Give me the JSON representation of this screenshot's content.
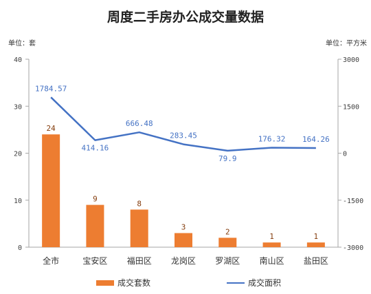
{
  "colors": {
    "bar": "#ED7D31",
    "line": "#4472C4",
    "bar_label": "#843C0C",
    "line_label": "#4472C4",
    "axis_line": "#A6A6A6"
  },
  "chart_data": {
    "type": "bar",
    "title": "周度二手房办公成交量数据",
    "ylabel": "单位：套",
    "y2label": "单位：平方米",
    "categories": [
      "全市",
      "宝安区",
      "福田区",
      "龙岗区",
      "罗湖区",
      "南山区",
      "盐田区"
    ],
    "series": [
      {
        "name": "成交套数",
        "type": "bar",
        "axis": "left",
        "values": [
          24,
          9,
          8,
          3,
          2,
          1,
          1
        ]
      },
      {
        "name": "成交面积",
        "type": "line",
        "axis": "right",
        "values": [
          1784.57,
          414.16,
          666.48,
          283.45,
          79.9,
          176.32,
          164.26
        ]
      }
    ],
    "ylim": [
      0,
      40
    ],
    "yticks": [
      0,
      10,
      20,
      30,
      40
    ],
    "y2lim": [
      -3000,
      3000
    ],
    "y2ticks": [
      -3000,
      -1500,
      0,
      1500,
      3000
    ],
    "grid": false,
    "legend": "bottom"
  }
}
